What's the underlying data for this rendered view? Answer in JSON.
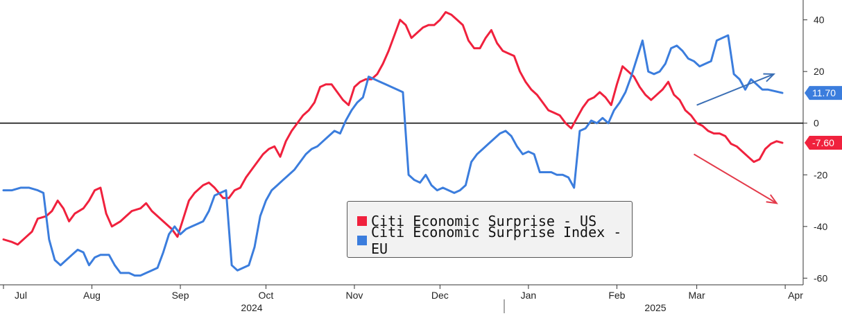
{
  "chart_data": {
    "type": "line",
    "y_axis": {
      "side": "right",
      "ylim": [
        -65,
        45
      ],
      "ticks": [
        40,
        20,
        0,
        -20,
        -40,
        -60
      ],
      "tick_labels": [
        "40",
        "20",
        "0",
        "-20",
        "-40",
        "-60"
      ]
    },
    "x_axis": {
      "month_labels": [
        "Jul",
        "Aug",
        "Sep",
        "Oct",
        "Nov",
        "Dec",
        "Jan",
        "Feb",
        "Mar",
        "Apr"
      ],
      "year_labels": [
        "2024",
        "2025"
      ],
      "start": "2024-07-01",
      "end": "2025-03-31"
    },
    "zero_line": true,
    "legend_placement": "bottom-center",
    "series": [
      {
        "name": "Citi Economic Surprise - US",
        "color": "#f0213d",
        "last_value_label": "-7.60",
        "points": [
          [
            "2024-07-01",
            -45
          ],
          [
            "2024-07-04",
            -46
          ],
          [
            "2024-07-06",
            -47
          ],
          [
            "2024-07-09",
            -44
          ],
          [
            "2024-07-11",
            -42
          ],
          [
            "2024-07-13",
            -37
          ],
          [
            "2024-07-16",
            -36
          ],
          [
            "2024-07-18",
            -34
          ],
          [
            "2024-07-20",
            -30
          ],
          [
            "2024-07-22",
            -33
          ],
          [
            "2024-07-24",
            -38
          ],
          [
            "2024-07-26",
            -35
          ],
          [
            "2024-07-29",
            -33
          ],
          [
            "2024-07-31",
            -30
          ],
          [
            "2024-08-02",
            -26
          ],
          [
            "2024-08-04",
            -25
          ],
          [
            "2024-08-06",
            -35
          ],
          [
            "2024-08-08",
            -40
          ],
          [
            "2024-08-11",
            -38
          ],
          [
            "2024-08-13",
            -36
          ],
          [
            "2024-08-15",
            -34
          ],
          [
            "2024-08-18",
            -33
          ],
          [
            "2024-08-20",
            -31
          ],
          [
            "2024-08-22",
            -34
          ],
          [
            "2024-08-25",
            -37
          ],
          [
            "2024-08-27",
            -39
          ],
          [
            "2024-08-29",
            -41
          ],
          [
            "2024-08-31",
            -44
          ],
          [
            "2024-09-02",
            -37
          ],
          [
            "2024-09-04",
            -30
          ],
          [
            "2024-09-06",
            -27
          ],
          [
            "2024-09-09",
            -24
          ],
          [
            "2024-09-11",
            -23
          ],
          [
            "2024-09-13",
            -25
          ],
          [
            "2024-09-16",
            -29
          ],
          [
            "2024-09-18",
            -29
          ],
          [
            "2024-09-20",
            -26
          ],
          [
            "2024-09-22",
            -25
          ],
          [
            "2024-09-24",
            -21
          ],
          [
            "2024-09-26",
            -18
          ],
          [
            "2024-09-28",
            -15
          ],
          [
            "2024-09-30",
            -12
          ],
          [
            "2024-10-02",
            -10
          ],
          [
            "2024-10-04",
            -9
          ],
          [
            "2024-10-06",
            -13
          ],
          [
            "2024-10-08",
            -7
          ],
          [
            "2024-10-10",
            -3
          ],
          [
            "2024-10-12",
            0
          ],
          [
            "2024-10-14",
            3
          ],
          [
            "2024-10-16",
            5
          ],
          [
            "2024-10-18",
            8
          ],
          [
            "2024-10-20",
            14
          ],
          [
            "2024-10-22",
            15
          ],
          [
            "2024-10-24",
            15
          ],
          [
            "2024-10-26",
            12
          ],
          [
            "2024-10-28",
            9
          ],
          [
            "2024-10-30",
            7
          ],
          [
            "2024-11-01",
            14
          ],
          [
            "2024-11-03",
            16
          ],
          [
            "2024-11-05",
            17
          ],
          [
            "2024-11-07",
            17
          ],
          [
            "2024-11-09",
            19
          ],
          [
            "2024-11-11",
            23
          ],
          [
            "2024-11-13",
            28
          ],
          [
            "2024-11-15",
            34
          ],
          [
            "2024-11-17",
            40
          ],
          [
            "2024-11-19",
            38
          ],
          [
            "2024-11-21",
            33
          ],
          [
            "2024-11-23",
            35
          ],
          [
            "2024-11-25",
            37
          ],
          [
            "2024-11-27",
            38
          ],
          [
            "2024-11-29",
            38
          ],
          [
            "2024-12-01",
            40
          ],
          [
            "2024-12-03",
            43
          ],
          [
            "2024-12-05",
            42
          ],
          [
            "2024-12-07",
            40
          ],
          [
            "2024-12-09",
            38
          ],
          [
            "2024-12-11",
            32
          ],
          [
            "2024-12-13",
            29
          ],
          [
            "2024-12-15",
            29
          ],
          [
            "2024-12-17",
            33
          ],
          [
            "2024-12-19",
            36
          ],
          [
            "2024-12-21",
            31
          ],
          [
            "2024-12-23",
            28
          ],
          [
            "2024-12-25",
            27
          ],
          [
            "2024-12-27",
            26
          ],
          [
            "2024-12-29",
            20
          ],
          [
            "2024-12-31",
            16
          ],
          [
            "2025-01-02",
            13
          ],
          [
            "2025-01-04",
            11
          ],
          [
            "2025-01-06",
            8
          ],
          [
            "2025-01-08",
            5
          ],
          [
            "2025-01-10",
            4
          ],
          [
            "2025-01-12",
            3
          ],
          [
            "2025-01-14",
            0
          ],
          [
            "2025-01-16",
            -2
          ],
          [
            "2025-01-18",
            2
          ],
          [
            "2025-01-20",
            6
          ],
          [
            "2025-01-22",
            9
          ],
          [
            "2025-01-24",
            10
          ],
          [
            "2025-01-26",
            12
          ],
          [
            "2025-01-28",
            10
          ],
          [
            "2025-01-30",
            7
          ],
          [
            "2025-02-01",
            15
          ],
          [
            "2025-02-03",
            22
          ],
          [
            "2025-02-05",
            20
          ],
          [
            "2025-02-07",
            18
          ],
          [
            "2025-02-09",
            14
          ],
          [
            "2025-02-11",
            11
          ],
          [
            "2025-02-13",
            9
          ],
          [
            "2025-02-15",
            11
          ],
          [
            "2025-02-17",
            13
          ],
          [
            "2025-02-19",
            16
          ],
          [
            "2025-02-21",
            11
          ],
          [
            "2025-02-23",
            9
          ],
          [
            "2025-02-25",
            5
          ],
          [
            "2025-02-27",
            3
          ],
          [
            "2025-03-01",
            0
          ],
          [
            "2025-03-03",
            -1
          ],
          [
            "2025-03-05",
            -3
          ],
          [
            "2025-03-07",
            -4
          ],
          [
            "2025-03-09",
            -4
          ],
          [
            "2025-03-11",
            -5
          ],
          [
            "2025-03-13",
            -8
          ],
          [
            "2025-03-15",
            -9
          ],
          [
            "2025-03-17",
            -11
          ],
          [
            "2025-03-19",
            -13
          ],
          [
            "2025-03-21",
            -15
          ],
          [
            "2025-03-23",
            -14
          ],
          [
            "2025-03-25",
            -10
          ],
          [
            "2025-03-27",
            -8
          ],
          [
            "2025-03-29",
            -7
          ],
          [
            "2025-03-31",
            -7.6
          ]
        ]
      },
      {
        "name": "Citi Economic Surprise Index - EU",
        "color": "#3b7ddd",
        "last_value_label": "11.70",
        "points": [
          [
            "2024-07-01",
            -26
          ],
          [
            "2024-07-04",
            -26
          ],
          [
            "2024-07-07",
            -25
          ],
          [
            "2024-07-10",
            -25
          ],
          [
            "2024-07-13",
            -26
          ],
          [
            "2024-07-15",
            -27
          ],
          [
            "2024-07-17",
            -45
          ],
          [
            "2024-07-19",
            -53
          ],
          [
            "2024-07-21",
            -55
          ],
          [
            "2024-07-23",
            -53
          ],
          [
            "2024-07-25",
            -51
          ],
          [
            "2024-07-27",
            -49
          ],
          [
            "2024-07-29",
            -50
          ],
          [
            "2024-07-31",
            -55
          ],
          [
            "2024-08-02",
            -52
          ],
          [
            "2024-08-04",
            -51
          ],
          [
            "2024-08-07",
            -51
          ],
          [
            "2024-08-09",
            -55
          ],
          [
            "2024-08-11",
            -58
          ],
          [
            "2024-08-14",
            -58
          ],
          [
            "2024-08-16",
            -59
          ],
          [
            "2024-08-18",
            -59
          ],
          [
            "2024-08-20",
            -58
          ],
          [
            "2024-08-22",
            -57
          ],
          [
            "2024-08-24",
            -56
          ],
          [
            "2024-08-26",
            -50
          ],
          [
            "2024-08-28",
            -43
          ],
          [
            "2024-08-30",
            -40
          ],
          [
            "2024-09-01",
            -43
          ],
          [
            "2024-09-03",
            -41
          ],
          [
            "2024-09-05",
            -40
          ],
          [
            "2024-09-07",
            -39
          ],
          [
            "2024-09-09",
            -38
          ],
          [
            "2024-09-11",
            -34
          ],
          [
            "2024-09-13",
            -28
          ],
          [
            "2024-09-15",
            -27
          ],
          [
            "2024-09-17",
            -26
          ],
          [
            "2024-09-19",
            -55
          ],
          [
            "2024-09-21",
            -57
          ],
          [
            "2024-09-23",
            -56
          ],
          [
            "2024-09-25",
            -55
          ],
          [
            "2024-09-27",
            -48
          ],
          [
            "2024-09-29",
            -36
          ],
          [
            "2024-10-01",
            -30
          ],
          [
            "2024-10-03",
            -26
          ],
          [
            "2024-10-05",
            -24
          ],
          [
            "2024-10-07",
            -22
          ],
          [
            "2024-10-09",
            -20
          ],
          [
            "2024-10-11",
            -18
          ],
          [
            "2024-10-13",
            -15
          ],
          [
            "2024-10-15",
            -12
          ],
          [
            "2024-10-17",
            -10
          ],
          [
            "2024-10-19",
            -9
          ],
          [
            "2024-10-21",
            -7
          ],
          [
            "2024-10-23",
            -5
          ],
          [
            "2024-10-25",
            -3
          ],
          [
            "2024-10-27",
            -4
          ],
          [
            "2024-10-29",
            1
          ],
          [
            "2024-10-31",
            5
          ],
          [
            "2024-11-02",
            8
          ],
          [
            "2024-11-04",
            10
          ],
          [
            "2024-11-06",
            18
          ],
          [
            "2024-11-08",
            17
          ],
          [
            "2024-11-10",
            16
          ],
          [
            "2024-11-12",
            15
          ],
          [
            "2024-11-14",
            14
          ],
          [
            "2024-11-16",
            13
          ],
          [
            "2024-11-18",
            12
          ],
          [
            "2024-11-20",
            -20
          ],
          [
            "2024-11-22",
            -22
          ],
          [
            "2024-11-24",
            -23
          ],
          [
            "2024-11-26",
            -20
          ],
          [
            "2024-11-28",
            -24
          ],
          [
            "2024-11-30",
            -26
          ],
          [
            "2024-12-02",
            -25
          ],
          [
            "2024-12-04",
            -26
          ],
          [
            "2024-12-06",
            -27
          ],
          [
            "2024-12-08",
            -26
          ],
          [
            "2024-12-10",
            -24
          ],
          [
            "2024-12-12",
            -15
          ],
          [
            "2024-12-14",
            -12
          ],
          [
            "2024-12-16",
            -10
          ],
          [
            "2024-12-18",
            -8
          ],
          [
            "2024-12-20",
            -6
          ],
          [
            "2024-12-22",
            -4
          ],
          [
            "2024-12-24",
            -3
          ],
          [
            "2024-12-26",
            -5
          ],
          [
            "2024-12-28",
            -9
          ],
          [
            "2024-12-30",
            -12
          ],
          [
            "2025-01-01",
            -11
          ],
          [
            "2025-01-03",
            -12
          ],
          [
            "2025-01-05",
            -19
          ],
          [
            "2025-01-07",
            -19
          ],
          [
            "2025-01-09",
            -19
          ],
          [
            "2025-01-11",
            -20
          ],
          [
            "2025-01-13",
            -20
          ],
          [
            "2025-01-15",
            -21
          ],
          [
            "2025-01-17",
            -25
          ],
          [
            "2025-01-19",
            -3
          ],
          [
            "2025-01-21",
            -2
          ],
          [
            "2025-01-23",
            1
          ],
          [
            "2025-01-25",
            0
          ],
          [
            "2025-01-27",
            2
          ],
          [
            "2025-01-29",
            0
          ],
          [
            "2025-01-31",
            5
          ],
          [
            "2025-02-02",
            8
          ],
          [
            "2025-02-04",
            12
          ],
          [
            "2025-02-06",
            18
          ],
          [
            "2025-02-08",
            25
          ],
          [
            "2025-02-10",
            32
          ],
          [
            "2025-02-12",
            20
          ],
          [
            "2025-02-14",
            19
          ],
          [
            "2025-02-16",
            20
          ],
          [
            "2025-02-18",
            23
          ],
          [
            "2025-02-20",
            29
          ],
          [
            "2025-02-22",
            30
          ],
          [
            "2025-02-24",
            28
          ],
          [
            "2025-02-26",
            25
          ],
          [
            "2025-02-28",
            24
          ],
          [
            "2025-03-02",
            22
          ],
          [
            "2025-03-04",
            23
          ],
          [
            "2025-03-06",
            24
          ],
          [
            "2025-03-08",
            32
          ],
          [
            "2025-03-10",
            33
          ],
          [
            "2025-03-12",
            34
          ],
          [
            "2025-03-14",
            19
          ],
          [
            "2025-03-16",
            17
          ],
          [
            "2025-03-18",
            13
          ],
          [
            "2025-03-20",
            17
          ],
          [
            "2025-03-22",
            15
          ],
          [
            "2025-03-24",
            13
          ],
          [
            "2025-03-26",
            13
          ],
          [
            "2025-03-31",
            11.7
          ]
        ]
      }
    ],
    "annotations": [
      {
        "type": "arrow",
        "color": "#3b6fb5",
        "direction": "up-right",
        "from": [
          "2025-03-01",
          7
        ],
        "to": [
          "2025-03-28",
          19
        ]
      },
      {
        "type": "arrow",
        "color": "#e33a4a",
        "direction": "down-right",
        "from": [
          "2025-02-28",
          -12
        ],
        "to": [
          "2025-03-29",
          -31
        ]
      }
    ]
  }
}
